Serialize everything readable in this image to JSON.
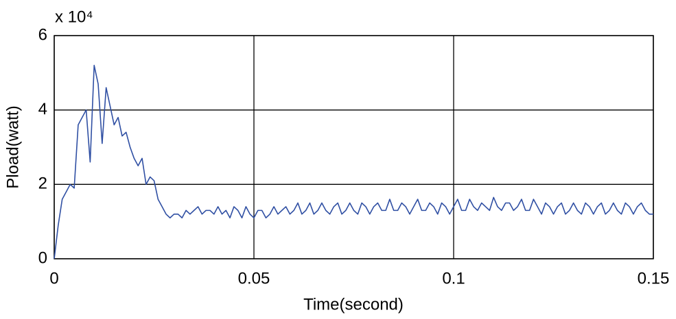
{
  "chart_data": {
    "type": "line",
    "y_multiplier": "x 10⁴",
    "xlabel": "Time(second)",
    "ylabel": "Pload(watt)",
    "xlim": [
      0,
      0.15
    ],
    "ylim": [
      0,
      6
    ],
    "xticks": [
      0,
      0.05,
      0.1,
      0.15
    ],
    "yticks": [
      0,
      2,
      4,
      6
    ],
    "grid": true,
    "x": [
      0,
      0.001,
      0.002,
      0.003,
      0.004,
      0.005,
      0.006,
      0.007,
      0.008,
      0.009,
      0.01,
      0.011,
      0.012,
      0.013,
      0.014,
      0.015,
      0.016,
      0.017,
      0.018,
      0.019,
      0.02,
      0.021,
      0.022,
      0.023,
      0.024,
      0.025,
      0.026,
      0.027,
      0.028,
      0.029,
      0.03,
      0.031,
      0.032,
      0.033,
      0.034,
      0.035,
      0.036,
      0.037,
      0.038,
      0.039,
      0.04,
      0.041,
      0.042,
      0.043,
      0.044,
      0.045,
      0.046,
      0.047,
      0.048,
      0.049,
      0.05,
      0.051,
      0.052,
      0.053,
      0.054,
      0.055,
      0.056,
      0.057,
      0.058,
      0.059,
      0.06,
      0.061,
      0.062,
      0.063,
      0.064,
      0.065,
      0.066,
      0.067,
      0.068,
      0.069,
      0.07,
      0.071,
      0.072,
      0.073,
      0.074,
      0.075,
      0.076,
      0.077,
      0.078,
      0.079,
      0.08,
      0.081,
      0.082,
      0.083,
      0.084,
      0.085,
      0.086,
      0.087,
      0.088,
      0.089,
      0.09,
      0.091,
      0.092,
      0.093,
      0.094,
      0.095,
      0.096,
      0.097,
      0.098,
      0.099,
      0.1,
      0.101,
      0.102,
      0.103,
      0.104,
      0.105,
      0.106,
      0.107,
      0.108,
      0.109,
      0.11,
      0.111,
      0.112,
      0.113,
      0.114,
      0.115,
      0.116,
      0.117,
      0.118,
      0.119,
      0.12,
      0.121,
      0.122,
      0.123,
      0.124,
      0.125,
      0.126,
      0.127,
      0.128,
      0.129,
      0.13,
      0.131,
      0.132,
      0.133,
      0.134,
      0.135,
      0.136,
      0.137,
      0.138,
      0.139,
      0.14,
      0.141,
      0.142,
      0.143,
      0.144,
      0.145,
      0.146,
      0.147,
      0.148,
      0.149,
      0.15
    ],
    "series": [
      {
        "name": "Pload",
        "color": "#2f4fa3",
        "values": [
          0,
          0.9,
          1.6,
          1.8,
          2.0,
          1.9,
          3.6,
          3.8,
          4.0,
          2.6,
          5.2,
          4.7,
          3.1,
          4.6,
          4.1,
          3.6,
          3.8,
          3.3,
          3.4,
          3.0,
          2.7,
          2.5,
          2.7,
          2.0,
          2.2,
          2.1,
          1.6,
          1.4,
          1.2,
          1.1,
          1.2,
          1.2,
          1.1,
          1.3,
          1.2,
          1.3,
          1.4,
          1.2,
          1.3,
          1.3,
          1.2,
          1.4,
          1.2,
          1.3,
          1.1,
          1.4,
          1.3,
          1.1,
          1.4,
          1.2,
          1.1,
          1.3,
          1.3,
          1.1,
          1.2,
          1.4,
          1.2,
          1.3,
          1.4,
          1.2,
          1.3,
          1.5,
          1.2,
          1.3,
          1.5,
          1.2,
          1.3,
          1.5,
          1.3,
          1.2,
          1.4,
          1.5,
          1.2,
          1.3,
          1.5,
          1.3,
          1.2,
          1.5,
          1.4,
          1.2,
          1.4,
          1.5,
          1.3,
          1.3,
          1.6,
          1.3,
          1.3,
          1.5,
          1.4,
          1.2,
          1.4,
          1.6,
          1.3,
          1.3,
          1.5,
          1.4,
          1.2,
          1.5,
          1.4,
          1.2,
          1.4,
          1.6,
          1.3,
          1.3,
          1.6,
          1.4,
          1.3,
          1.5,
          1.4,
          1.3,
          1.65,
          1.4,
          1.3,
          1.5,
          1.5,
          1.3,
          1.4,
          1.6,
          1.3,
          1.3,
          1.6,
          1.4,
          1.2,
          1.5,
          1.4,
          1.2,
          1.4,
          1.5,
          1.2,
          1.3,
          1.5,
          1.3,
          1.2,
          1.5,
          1.4,
          1.2,
          1.4,
          1.5,
          1.2,
          1.3,
          1.5,
          1.3,
          1.2,
          1.5,
          1.4,
          1.2,
          1.4,
          1.5,
          1.3,
          1.2,
          1.2
        ]
      }
    ]
  }
}
